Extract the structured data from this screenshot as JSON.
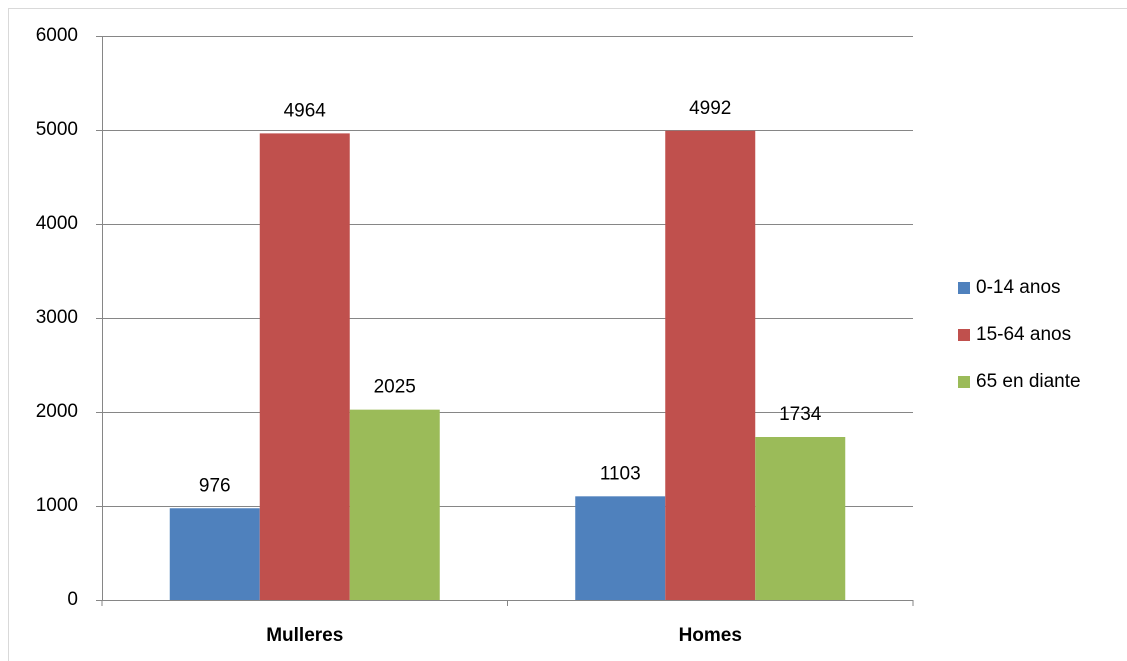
{
  "chart_data": {
    "type": "bar",
    "categories": [
      "Mulleres",
      "Homes"
    ],
    "series": [
      {
        "name": "0-14 anos",
        "color": "#4f81bd",
        "values": [
          976,
          1103
        ]
      },
      {
        "name": "15-64 anos",
        "color": "#c0504d",
        "values": [
          4964,
          4992
        ]
      },
      {
        "name": "65 en diante",
        "color": "#9bbb59",
        "values": [
          2025,
          1734
        ]
      }
    ],
    "ylim": [
      0,
      6000
    ],
    "yticks": [
      0,
      1000,
      2000,
      3000,
      4000,
      5000,
      6000
    ],
    "grid": true,
    "legend": "right"
  }
}
